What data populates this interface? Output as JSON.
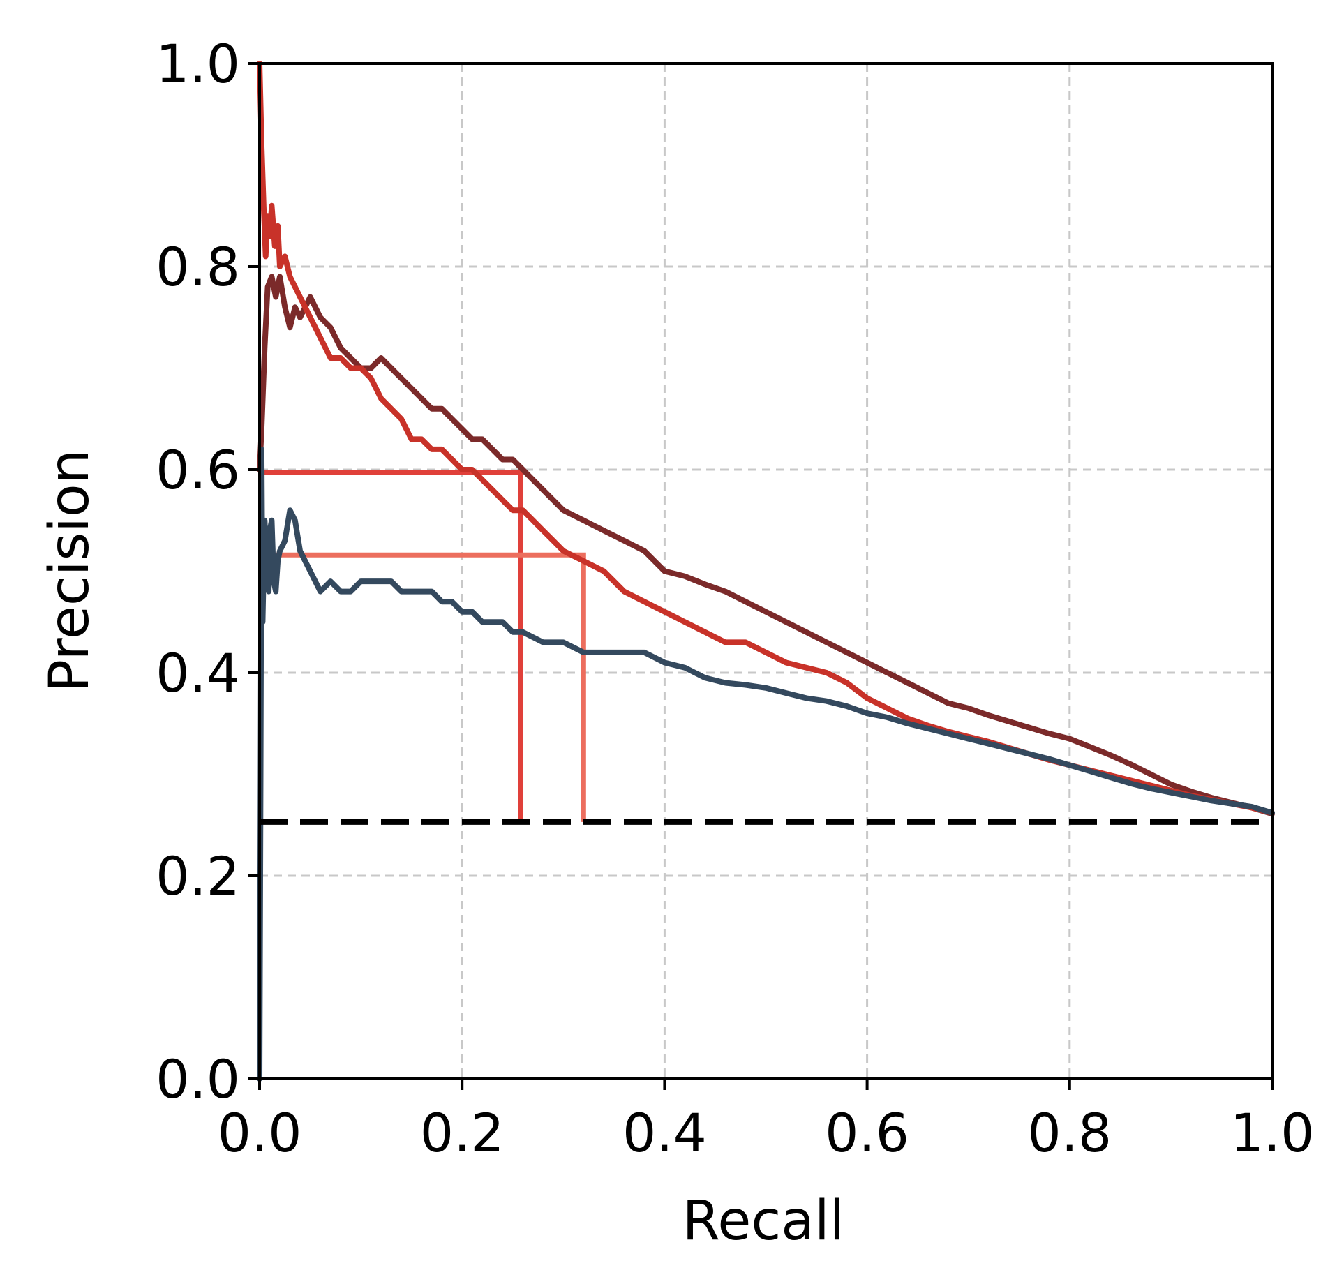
{
  "chart_data": {
    "type": "line",
    "title": "",
    "xlabel": "Recall",
    "ylabel": "Precision",
    "xlim": [
      0.0,
      1.0
    ],
    "ylim": [
      0.0,
      1.0
    ],
    "xticks": [
      0.0,
      0.2,
      0.4,
      0.6,
      0.8,
      1.0
    ],
    "yticks": [
      0.0,
      0.2,
      0.4,
      0.6,
      0.8,
      1.0
    ],
    "xtick_labels": [
      "0.0",
      "0.2",
      "0.4",
      "0.6",
      "0.8",
      "1.0"
    ],
    "ytick_labels": [
      "0.0",
      "0.2",
      "0.4",
      "0.6",
      "0.8",
      "1.0"
    ],
    "grid": true,
    "legend": "none",
    "baseline": {
      "y": 0.253,
      "style": "dashed",
      "color": "#000000"
    },
    "series": [
      {
        "color": "#7b2a2a",
        "x": [
          0.0,
          0.002,
          0.005,
          0.008,
          0.012,
          0.016,
          0.02,
          0.025,
          0.03,
          0.035,
          0.04,
          0.045,
          0.05,
          0.055,
          0.06,
          0.07,
          0.08,
          0.09,
          0.1,
          0.11,
          0.12,
          0.13,
          0.14,
          0.15,
          0.16,
          0.17,
          0.18,
          0.19,
          0.2,
          0.21,
          0.22,
          0.23,
          0.24,
          0.25,
          0.26,
          0.27,
          0.28,
          0.29,
          0.3,
          0.32,
          0.34,
          0.36,
          0.38,
          0.4,
          0.42,
          0.44,
          0.46,
          0.48,
          0.5,
          0.52,
          0.54,
          0.56,
          0.58,
          0.6,
          0.62,
          0.64,
          0.66,
          0.68,
          0.7,
          0.72,
          0.74,
          0.76,
          0.78,
          0.8,
          0.82,
          0.84,
          0.86,
          0.88,
          0.9,
          0.92,
          0.94,
          0.96,
          0.98,
          1.0
        ],
        "y": [
          0.6,
          0.64,
          0.72,
          0.78,
          0.79,
          0.77,
          0.79,
          0.76,
          0.74,
          0.76,
          0.75,
          0.76,
          0.77,
          0.76,
          0.75,
          0.74,
          0.72,
          0.71,
          0.7,
          0.7,
          0.71,
          0.7,
          0.69,
          0.68,
          0.67,
          0.66,
          0.66,
          0.65,
          0.64,
          0.63,
          0.63,
          0.62,
          0.61,
          0.61,
          0.6,
          0.59,
          0.58,
          0.57,
          0.56,
          0.55,
          0.54,
          0.53,
          0.52,
          0.5,
          0.495,
          0.487,
          0.48,
          0.47,
          0.46,
          0.45,
          0.44,
          0.43,
          0.42,
          0.41,
          0.4,
          0.39,
          0.38,
          0.37,
          0.365,
          0.358,
          0.352,
          0.346,
          0.34,
          0.335,
          0.327,
          0.319,
          0.31,
          0.3,
          0.29,
          0.283,
          0.277,
          0.272,
          0.267,
          0.261
        ]
      },
      {
        "color": "#c83229",
        "x": [
          0.0,
          0.002,
          0.004,
          0.006,
          0.008,
          0.01,
          0.012,
          0.015,
          0.018,
          0.02,
          0.025,
          0.03,
          0.035,
          0.04,
          0.045,
          0.05,
          0.055,
          0.06,
          0.065,
          0.07,
          0.08,
          0.09,
          0.1,
          0.11,
          0.12,
          0.13,
          0.14,
          0.15,
          0.16,
          0.17,
          0.18,
          0.19,
          0.2,
          0.21,
          0.22,
          0.23,
          0.24,
          0.25,
          0.26,
          0.27,
          0.28,
          0.29,
          0.3,
          0.32,
          0.34,
          0.36,
          0.38,
          0.4,
          0.42,
          0.44,
          0.46,
          0.48,
          0.5,
          0.52,
          0.54,
          0.56,
          0.58,
          0.6,
          0.62,
          0.64,
          0.66,
          0.68,
          0.7,
          0.72,
          0.74,
          0.76,
          0.78,
          0.8,
          0.82,
          0.84,
          0.86,
          0.88,
          0.9,
          0.92,
          0.94,
          0.96,
          0.98,
          1.0
        ],
        "y": [
          1.0,
          0.92,
          0.86,
          0.81,
          0.85,
          0.83,
          0.86,
          0.82,
          0.84,
          0.8,
          0.81,
          0.79,
          0.78,
          0.77,
          0.76,
          0.75,
          0.74,
          0.73,
          0.72,
          0.71,
          0.71,
          0.7,
          0.7,
          0.69,
          0.67,
          0.66,
          0.65,
          0.63,
          0.63,
          0.62,
          0.62,
          0.61,
          0.6,
          0.6,
          0.59,
          0.58,
          0.57,
          0.56,
          0.56,
          0.55,
          0.54,
          0.53,
          0.52,
          0.51,
          0.5,
          0.48,
          0.47,
          0.46,
          0.45,
          0.44,
          0.43,
          0.43,
          0.42,
          0.41,
          0.405,
          0.4,
          0.39,
          0.375,
          0.365,
          0.355,
          0.348,
          0.342,
          0.337,
          0.332,
          0.326,
          0.32,
          0.314,
          0.309,
          0.304,
          0.299,
          0.294,
          0.289,
          0.284,
          0.279,
          0.275,
          0.271,
          0.267,
          0.262
        ]
      },
      {
        "color": "#34495e",
        "x": [
          0.0,
          0.001,
          0.002,
          0.003,
          0.005,
          0.007,
          0.009,
          0.01,
          0.012,
          0.014,
          0.016,
          0.018,
          0.02,
          0.025,
          0.03,
          0.035,
          0.04,
          0.045,
          0.05,
          0.06,
          0.07,
          0.08,
          0.09,
          0.1,
          0.11,
          0.12,
          0.13,
          0.14,
          0.15,
          0.16,
          0.17,
          0.18,
          0.19,
          0.2,
          0.21,
          0.22,
          0.23,
          0.24,
          0.25,
          0.26,
          0.28,
          0.3,
          0.32,
          0.34,
          0.36,
          0.38,
          0.4,
          0.42,
          0.44,
          0.46,
          0.48,
          0.5,
          0.52,
          0.54,
          0.56,
          0.58,
          0.6,
          0.62,
          0.64,
          0.66,
          0.68,
          0.7,
          0.72,
          0.74,
          0.76,
          0.78,
          0.8,
          0.82,
          0.84,
          0.86,
          0.88,
          0.9,
          0.92,
          0.94,
          0.96,
          0.98,
          1.0
        ],
        "y": [
          0.0,
          0.3,
          0.62,
          0.45,
          0.55,
          0.5,
          0.48,
          0.54,
          0.55,
          0.49,
          0.48,
          0.51,
          0.52,
          0.53,
          0.56,
          0.55,
          0.52,
          0.51,
          0.5,
          0.48,
          0.49,
          0.48,
          0.48,
          0.49,
          0.49,
          0.49,
          0.49,
          0.48,
          0.48,
          0.48,
          0.48,
          0.47,
          0.47,
          0.46,
          0.46,
          0.45,
          0.45,
          0.45,
          0.44,
          0.44,
          0.43,
          0.43,
          0.42,
          0.42,
          0.42,
          0.42,
          0.41,
          0.405,
          0.395,
          0.39,
          0.388,
          0.385,
          0.38,
          0.375,
          0.372,
          0.367,
          0.36,
          0.356,
          0.35,
          0.345,
          0.34,
          0.335,
          0.33,
          0.325,
          0.32,
          0.315,
          0.309,
          0.303,
          0.297,
          0.291,
          0.286,
          0.282,
          0.278,
          0.274,
          0.271,
          0.268,
          0.262
        ]
      }
    ],
    "markers": [
      {
        "x": 0.258,
        "y": 0.597,
        "color": "#e0403a"
      },
      {
        "x": 0.32,
        "y": 0.516,
        "color": "#ec6e5e"
      }
    ]
  }
}
